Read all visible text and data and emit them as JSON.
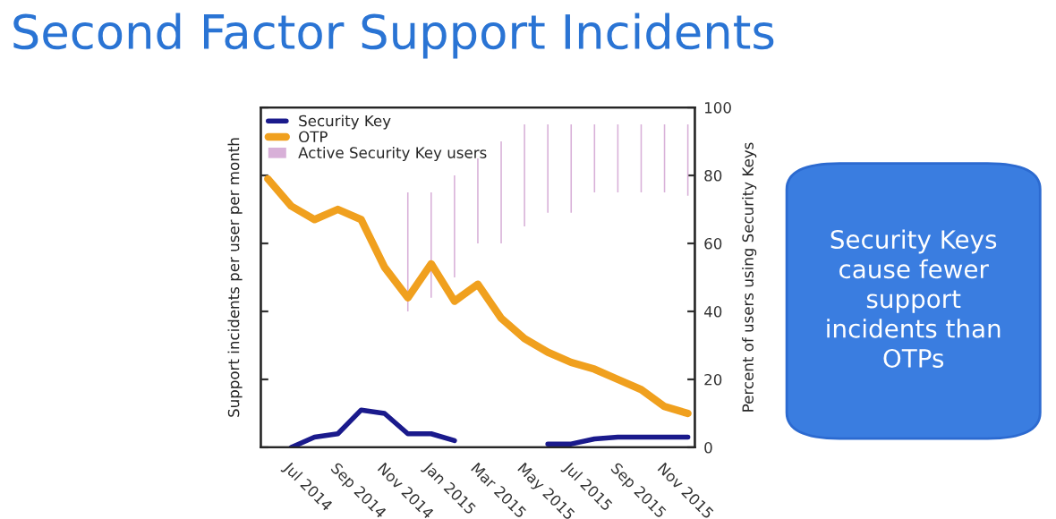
{
  "chart_data": {
    "type": "line",
    "title": "Second Factor Support Incidents",
    "ylabel": "Support incidents per user per month",
    "y2label": "Percent of users using Security Keys",
    "categories": [
      null,
      "Jul 2014",
      null,
      "Sep 2014",
      null,
      "Nov 2014",
      null,
      "Jan 2015",
      null,
      "Mar 2015",
      null,
      "May 2015",
      null,
      "Jul 2015",
      null,
      "Sep 2015",
      null,
      "Nov 2015",
      null
    ],
    "series": [
      {
        "name": "Security Key",
        "color": "#1a1a8c",
        "axis": "y2",
        "values": [
          null,
          0,
          3,
          4,
          11,
          10,
          4,
          4,
          2,
          null,
          null,
          null,
          1,
          1,
          2.5,
          3,
          3,
          3,
          3
        ]
      },
      {
        "name": "OTP",
        "color": "#f0a01e",
        "axis": "y2",
        "values": [
          79,
          71,
          67,
          70,
          67,
          53,
          44,
          54,
          43,
          48,
          38,
          32,
          28,
          25,
          23,
          20,
          17,
          12,
          10
        ]
      },
      {
        "name": "Active Security Key users",
        "type": "bar",
        "axis": "y2",
        "color": "#d8b0d8",
        "base": [
          null,
          null,
          null,
          null,
          null,
          null,
          40,
          44,
          50,
          60,
          60,
          65,
          69,
          69,
          75,
          75,
          75,
          75,
          74
        ],
        "values": [
          null,
          null,
          null,
          null,
          null,
          null,
          35,
          31,
          30,
          25,
          30,
          30,
          26,
          26,
          20,
          20,
          20,
          20,
          21
        ]
      }
    ],
    "y2lim": [
      0,
      100
    ],
    "y2ticks": [
      0,
      20,
      40,
      60,
      80,
      100
    ],
    "legend": "top left",
    "grid": false,
    "annotations": [
      "Security Keys cause fewer support incidents than OTPs"
    ]
  }
}
